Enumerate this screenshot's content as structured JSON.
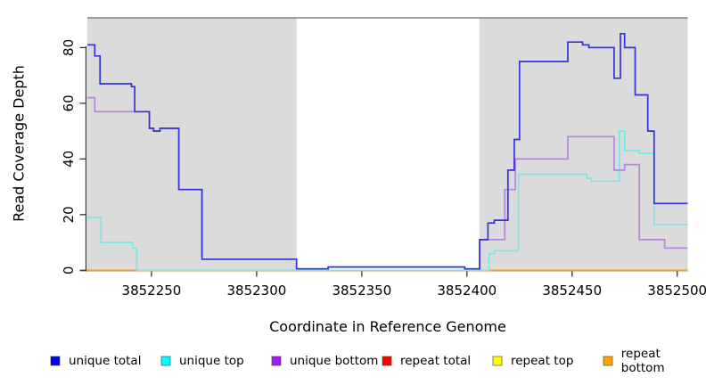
{
  "chart_data": {
    "type": "line",
    "step": true,
    "title": "",
    "xlabel": "Coordinate in Reference Genome",
    "ylabel": "Read Coverage Depth",
    "xlim": [
      3852219.5,
      3852505
    ],
    "ylim": [
      0,
      90.7
    ],
    "x_ticks": [
      3852250,
      3852300,
      3852350,
      3852400,
      3852450,
      3852500
    ],
    "y_ticks": [
      0,
      20,
      40,
      60,
      80
    ],
    "grid": false,
    "legend_position": "bottom",
    "shaded_regions": [
      {
        "name": "masked-region-left",
        "x0": 3852219.5,
        "x1": 3852319,
        "color": "#dbdbdb"
      },
      {
        "name": "masked-region-right",
        "x0": 3852406,
        "x1": 3852505,
        "color": "#dbdbdb"
      }
    ],
    "zero_line_segments": [
      {
        "x0": 3852219.5,
        "x1": 3852243,
        "color": "#ff9d1e"
      },
      {
        "x0": 3852243,
        "x1": 3852410,
        "color": "#8cc98c"
      },
      {
        "x0": 3852410,
        "x1": 3852505,
        "color": "#ff9d1e"
      }
    ],
    "series": [
      {
        "name": "unique total",
        "line_color": "#3434d6",
        "points": [
          [
            3852219.5,
            81
          ],
          [
            3852223,
            77
          ],
          [
            3852225.5,
            67
          ],
          [
            3852240.5,
            66
          ],
          [
            3852242,
            57
          ],
          [
            3852249,
            51
          ],
          [
            3852251,
            50
          ],
          [
            3852254,
            51
          ],
          [
            3852263,
            29
          ],
          [
            3852274,
            4
          ],
          [
            3852319,
            0.5
          ],
          [
            3852334,
            1.2
          ],
          [
            3852399,
            0.5
          ],
          [
            3852406,
            11
          ],
          [
            3852410,
            17
          ],
          [
            3852413,
            18
          ],
          [
            3852419.5,
            36
          ],
          [
            3852422.5,
            47
          ],
          [
            3852425,
            75
          ],
          [
            3852448,
            82
          ],
          [
            3852455,
            81
          ],
          [
            3852458,
            80
          ],
          [
            3852470,
            69
          ],
          [
            3852473,
            85
          ],
          [
            3852475,
            80
          ],
          [
            3852480,
            63
          ],
          [
            3852486,
            50
          ],
          [
            3852489,
            24
          ],
          [
            3852505,
            24
          ]
        ]
      },
      {
        "name": "unique top",
        "line_color": "#7ce6e3",
        "points": [
          [
            3852219.5,
            19
          ],
          [
            3852226,
            10
          ],
          [
            3852241,
            8
          ],
          [
            3852243,
            0
          ],
          [
            3852410.5,
            6
          ],
          [
            3852413,
            7
          ],
          [
            3852424.5,
            34.5
          ],
          [
            3852457,
            33
          ],
          [
            3852459,
            32
          ],
          [
            3852472.5,
            50
          ],
          [
            3852475,
            43
          ],
          [
            3852482,
            42
          ],
          [
            3852489,
            16.5
          ],
          [
            3852505,
            16.5
          ]
        ]
      },
      {
        "name": "unique bottom",
        "line_color": "#b586dd",
        "points": [
          [
            3852219.5,
            62
          ],
          [
            3852223,
            57
          ],
          [
            3852249,
            51
          ],
          [
            3852251,
            50
          ],
          [
            3852254,
            51
          ],
          [
            3852263,
            29
          ],
          [
            3852274,
            4
          ],
          [
            3852319,
            0.5
          ],
          [
            3852334,
            1.2
          ],
          [
            3852399,
            0.5
          ],
          [
            3852406,
            11
          ],
          [
            3852418,
            29
          ],
          [
            3852423,
            40
          ],
          [
            3852448,
            48
          ],
          [
            3852470,
            36
          ],
          [
            3852475,
            38
          ],
          [
            3852482,
            11
          ],
          [
            3852494,
            8
          ],
          [
            3852505,
            8
          ]
        ]
      },
      {
        "name": "repeat total",
        "line_color": "#e03030",
        "points": [
          [
            3852219.5,
            0
          ],
          [
            3852505,
            0
          ]
        ]
      },
      {
        "name": "repeat top",
        "line_color": "#ffe400",
        "points": [
          [
            3852219.5,
            0
          ],
          [
            3852505,
            0
          ]
        ]
      },
      {
        "name": "repeat bottom",
        "line_color": "#ff9d1e",
        "points": [
          [
            3852219.5,
            0
          ],
          [
            3852505,
            0
          ]
        ]
      }
    ]
  },
  "legend": {
    "items": [
      {
        "label": "unique total",
        "color": "#0000ee"
      },
      {
        "label": "unique top",
        "color": "#00ffff"
      },
      {
        "label": "unique bottom",
        "color": "#a020f0"
      },
      {
        "label": "repeat total",
        "color": "#ff0000"
      },
      {
        "label": "repeat top",
        "color": "#ffff00"
      },
      {
        "label": "repeat bottom",
        "color": "#ffa500"
      }
    ]
  }
}
